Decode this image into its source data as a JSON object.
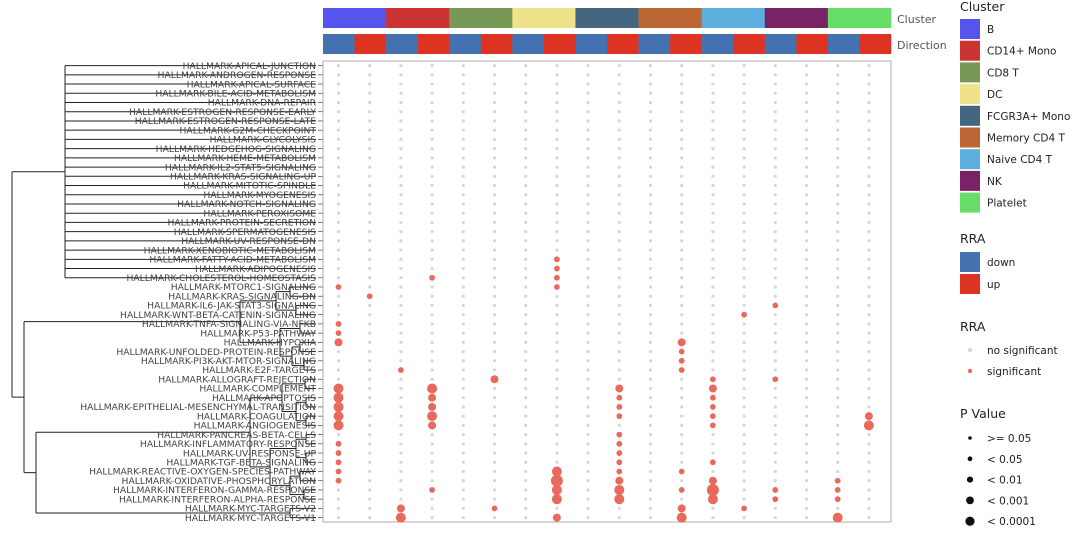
{
  "chart_data": {
    "type": "scatter",
    "subtype": "dot-heatmap",
    "rows": [
      "HALLMARK-APICAL-JUNCTION",
      "HALLMARK-ANDROGEN-RESPONSE",
      "HALLMARK-APICAL-SURFACE",
      "HALLMARK-BILE-ACID-METABOLISM",
      "HALLMARK-DNA-REPAIR",
      "HALLMARK-ESTROGEN-RESPONSE-EARLY",
      "HALLMARK-ESTROGEN-RESPONSE-LATE",
      "HALLMARK-G2M-CHECKPOINT",
      "HALLMARK-GLYCOLYSIS",
      "HALLMARK-HEDGEHOG-SIGNALING",
      "HALLMARK-HEME-METABOLISM",
      "HALLMARK-IL2-STAT5-SIGNALING",
      "HALLMARK-KRAS-SIGNALING-UP",
      "HALLMARK-MITOTIC-SPINDLE",
      "HALLMARK-MYOGENESIS",
      "HALLMARK-NOTCH-SIGNALING",
      "HALLMARK-PEROXISOME",
      "HALLMARK-PROTEIN-SECRETION",
      "HALLMARK-SPERMATOGENESIS",
      "HALLMARK-UV-RESPONSE-DN",
      "HALLMARK-XENOBIOTIC-METABOLISM",
      "HALLMARK-FATTY-ACID-METABOLISM",
      "HALLMARK-ADIPOGENESIS",
      "HALLMARK-CHOLESTEROL-HOMEOSTASIS",
      "HALLMARK-MTORC1-SIGNALING",
      "HALLMARK-KRAS-SIGNALING-DN",
      "HALLMARK-IL6-JAK-STAT3-SIGNALING",
      "HALLMARK-WNT-BETA-CATENIN-SIGNALING",
      "HALLMARK-TNFA-SIGNALING-VIA-NFKB",
      "HALLMARK-P53-PATHWAY",
      "HALLMARK-HYPOXIA",
      "HALLMARK-UNFOLDED-PROTEIN-RESPONSE",
      "HALLMARK-PI3K-AKT-MTOR-SIGNALING",
      "HALLMARK-E2F-TARGETS",
      "HALLMARK-ALLOGRAFT-REJECTION",
      "HALLMARK-COMPLEMENT",
      "HALLMARK-APOPTOSIS",
      "HALLMARK-EPITHELIAL-MESENCHYMAL-TRANSITION",
      "HALLMARK-COAGULATION",
      "HALLMARK-ANGIOGENESIS",
      "HALLMARK-PANCREAS-BETA-CELLS",
      "HALLMARK-INFLAMMATORY-RESPONSE",
      "HALLMARK-UV-RESPONSE-UP",
      "HALLMARK-TGF-BETA-SIGNALING",
      "HALLMARK-REACTIVE-OXYGEN-SPECIES-PATHWAY",
      "HALLMARK-OXIDATIVE-PHOSPHORYLATION",
      "HALLMARK-INTERFERON-GAMMA-RESPONSE",
      "HALLMARK-INTERFERON-ALPHA-RESPONSE",
      "HALLMARK-MYC-TARGETS-V2",
      "HALLMARK-MYC-TARGETS-V1"
    ],
    "clusters": [
      "B",
      "CD14+ Mono",
      "CD8 T",
      "DC",
      "FCGR3A+ Mono",
      "Memory CD4 T",
      "Naive CD4 T",
      "NK",
      "Platelet"
    ],
    "cluster_colors": [
      "#5555ee",
      "#cc3333",
      "#779955",
      "#eee388",
      "#446680",
      "#bb6633",
      "#5cb0dd",
      "#7a2266",
      "#66dd66"
    ],
    "directions": [
      "down",
      "up"
    ],
    "direction_colors": [
      "#4472b0",
      "#dd3322"
    ],
    "annotation_labels": [
      "Cluster",
      "Direction"
    ],
    "nonsignificant_color": "#d3d8db",
    "significant_color": "#e96a5c",
    "size_levels": [
      ">= 0.05",
      "< 0.05",
      "< 0.01",
      "< 0.001",
      "< 0.0001"
    ],
    "points": [
      {
        "row": "HALLMARK-MTORC1-SIGNALING",
        "col": 0,
        "size": 1
      },
      {
        "row": "HALLMARK-TNFA-SIGNALING-VIA-NFKB",
        "col": 0,
        "size": 1
      },
      {
        "row": "HALLMARK-P53-PATHWAY",
        "col": 0,
        "size": 1
      },
      {
        "row": "HALLMARK-HYPOXIA",
        "col": 0,
        "size": 2
      },
      {
        "row": "HALLMARK-COMPLEMENT",
        "col": 0,
        "size": 3
      },
      {
        "row": "HALLMARK-APOPTOSIS",
        "col": 0,
        "size": 3
      },
      {
        "row": "HALLMARK-EPITHELIAL-MESENCHYMAL-TRANSITION",
        "col": 0,
        "size": 3
      },
      {
        "row": "HALLMARK-COAGULATION",
        "col": 0,
        "size": 3
      },
      {
        "row": "HALLMARK-ANGIOGENESIS",
        "col": 0,
        "size": 3
      },
      {
        "row": "HALLMARK-INFLAMMATORY-RESPONSE",
        "col": 0,
        "size": 1
      },
      {
        "row": "HALLMARK-UV-RESPONSE-UP",
        "col": 0,
        "size": 1
      },
      {
        "row": "HALLMARK-TGF-BETA-SIGNALING",
        "col": 0,
        "size": 1
      },
      {
        "row": "HALLMARK-REACTIVE-OXYGEN-SPECIES-PATHWAY",
        "col": 0,
        "size": 1
      },
      {
        "row": "HALLMARK-OXIDATIVE-PHOSPHORYLATION",
        "col": 0,
        "size": 1
      },
      {
        "row": "HALLMARK-KRAS-SIGNALING-DN",
        "col": 1,
        "size": 1
      },
      {
        "row": "HALLMARK-MYC-TARGETS-V2",
        "col": 2,
        "size": 2
      },
      {
        "row": "HALLMARK-MYC-TARGETS-V1",
        "col": 2,
        "size": 3
      },
      {
        "row": "HALLMARK-E2F-TARGETS",
        "col": 2,
        "size": 1
      },
      {
        "row": "HALLMARK-CHOLESTEROL-HOMEOSTASIS",
        "col": 3,
        "size": 1
      },
      {
        "row": "HALLMARK-COMPLEMENT",
        "col": 3,
        "size": 3
      },
      {
        "row": "HALLMARK-APOPTOSIS",
        "col": 3,
        "size": 2
      },
      {
        "row": "HALLMARK-EPITHELIAL-MESENCHYMAL-TRANSITION",
        "col": 3,
        "size": 2
      },
      {
        "row": "HALLMARK-COAGULATION",
        "col": 3,
        "size": 3
      },
      {
        "row": "HALLMARK-ANGIOGENESIS",
        "col": 3,
        "size": 2
      },
      {
        "row": "HALLMARK-INTERFERON-GAMMA-RESPONSE",
        "col": 3,
        "size": 1
      },
      {
        "row": "HALLMARK-ALLOGRAFT-REJECTION",
        "col": 5,
        "size": 2
      },
      {
        "row": "HALLMARK-MYC-TARGETS-V2",
        "col": 5,
        "size": 1
      },
      {
        "row": "HALLMARK-FATTY-ACID-METABOLISM",
        "col": 7,
        "size": 1
      },
      {
        "row": "HALLMARK-ADIPOGENESIS",
        "col": 7,
        "size": 1
      },
      {
        "row": "HALLMARK-CHOLESTEROL-HOMEOSTASIS",
        "col": 7,
        "size": 1
      },
      {
        "row": "HALLMARK-MTORC1-SIGNALING",
        "col": 7,
        "size": 1
      },
      {
        "row": "HALLMARK-REACTIVE-OXYGEN-SPECIES-PATHWAY",
        "col": 7,
        "size": 3
      },
      {
        "row": "HALLMARK-OXIDATIVE-PHOSPHORYLATION",
        "col": 7,
        "size": 4
      },
      {
        "row": "HALLMARK-INTERFERON-GAMMA-RESPONSE",
        "col": 7,
        "size": 3
      },
      {
        "row": "HALLMARK-INTERFERON-ALPHA-RESPONSE",
        "col": 7,
        "size": 3
      },
      {
        "row": "HALLMARK-MYC-TARGETS-V1",
        "col": 7,
        "size": 2
      },
      {
        "row": "HALLMARK-COMPLEMENT",
        "col": 9,
        "size": 2
      },
      {
        "row": "HALLMARK-APOPTOSIS",
        "col": 9,
        "size": 1
      },
      {
        "row": "HALLMARK-EPITHELIAL-MESENCHYMAL-TRANSITION",
        "col": 9,
        "size": 1
      },
      {
        "row": "HALLMARK-COAGULATION",
        "col": 9,
        "size": 1
      },
      {
        "row": "HALLMARK-PANCREAS-BETA-CELLS",
        "col": 9,
        "size": 1
      },
      {
        "row": "HALLMARK-INFLAMMATORY-RESPONSE",
        "col": 9,
        "size": 1
      },
      {
        "row": "HALLMARK-UV-RESPONSE-UP",
        "col": 9,
        "size": 1
      },
      {
        "row": "HALLMARK-TGF-BETA-SIGNALING",
        "col": 9,
        "size": 1
      },
      {
        "row": "HALLMARK-REACTIVE-OXYGEN-SPECIES-PATHWAY",
        "col": 9,
        "size": 1
      },
      {
        "row": "HALLMARK-OXIDATIVE-PHOSPHORYLATION",
        "col": 9,
        "size": 2
      },
      {
        "row": "HALLMARK-INTERFERON-GAMMA-RESPONSE",
        "col": 9,
        "size": 3
      },
      {
        "row": "HALLMARK-INTERFERON-ALPHA-RESPONSE",
        "col": 9,
        "size": 3
      },
      {
        "row": "HALLMARK-HYPOXIA",
        "col": 11,
        "size": 2
      },
      {
        "row": "HALLMARK-UNFOLDED-PROTEIN-RESPONSE",
        "col": 11,
        "size": 1
      },
      {
        "row": "HALLMARK-PI3K-AKT-MTOR-SIGNALING",
        "col": 11,
        "size": 1
      },
      {
        "row": "HALLMARK-E2F-TARGETS",
        "col": 11,
        "size": 1
      },
      {
        "row": "HALLMARK-REACTIVE-OXYGEN-SPECIES-PATHWAY",
        "col": 11,
        "size": 1
      },
      {
        "row": "HALLMARK-INTERFERON-GAMMA-RESPONSE",
        "col": 11,
        "size": 1
      },
      {
        "row": "HALLMARK-MYC-TARGETS-V2",
        "col": 11,
        "size": 2
      },
      {
        "row": "HALLMARK-MYC-TARGETS-V1",
        "col": 11,
        "size": 3
      },
      {
        "row": "HALLMARK-WNT-BETA-CATENIN-SIGNALING",
        "col": 13,
        "size": 1
      },
      {
        "row": "HALLMARK-MYC-TARGETS-V2",
        "col": 13,
        "size": 1
      },
      {
        "row": "HALLMARK-ALLOGRAFT-REJECTION",
        "col": 12,
        "size": 1
      },
      {
        "row": "HALLMARK-COMPLEMENT",
        "col": 12,
        "size": 2
      },
      {
        "row": "HALLMARK-APOPTOSIS",
        "col": 12,
        "size": 1
      },
      {
        "row": "HALLMARK-EPITHELIAL-MESENCHYMAL-TRANSITION",
        "col": 12,
        "size": 1
      },
      {
        "row": "HALLMARK-COAGULATION",
        "col": 12,
        "size": 1
      },
      {
        "row": "HALLMARK-ANGIOGENESIS",
        "col": 12,
        "size": 1
      },
      {
        "row": "HALLMARK-TGF-BETA-SIGNALING",
        "col": 12,
        "size": 1
      },
      {
        "row": "HALLMARK-OXIDATIVE-PHOSPHORYLATION",
        "col": 12,
        "size": 2
      },
      {
        "row": "HALLMARK-INTERFERON-GAMMA-RESPONSE",
        "col": 12,
        "size": 4
      },
      {
        "row": "HALLMARK-INTERFERON-ALPHA-RESPONSE",
        "col": 12,
        "size": 3
      },
      {
        "row": "HALLMARK-IL6-JAK-STAT3-SIGNALING",
        "col": 14,
        "size": 1
      },
      {
        "row": "HALLMARK-ALLOGRAFT-REJECTION",
        "col": 14,
        "size": 1
      },
      {
        "row": "HALLMARK-INTERFERON-GAMMA-RESPONSE",
        "col": 14,
        "size": 1
      },
      {
        "row": "HALLMARK-INTERFERON-ALPHA-RESPONSE",
        "col": 14,
        "size": 1
      },
      {
        "row": "HALLMARK-OXIDATIVE-PHOSPHORYLATION",
        "col": 16,
        "size": 1
      },
      {
        "row": "HALLMARK-INTERFERON-GAMMA-RESPONSE",
        "col": 16,
        "size": 1
      },
      {
        "row": "HALLMARK-INTERFERON-ALPHA-RESPONSE",
        "col": 16,
        "size": 1
      },
      {
        "row": "HALLMARK-MYC-TARGETS-V1",
        "col": 16,
        "size": 3
      },
      {
        "row": "HALLMARK-COAGULATION",
        "col": 17,
        "size": 2
      },
      {
        "row": "HALLMARK-ANGIOGENESIS",
        "col": 17,
        "size": 3
      }
    ]
  },
  "legend": {
    "cluster_title": "Cluster",
    "rra_title": "RRA",
    "rra_items": [
      "down",
      "up"
    ],
    "sig_title": "RRA",
    "sig_items": [
      "no significant",
      "significant"
    ],
    "p_title": "P Value"
  }
}
